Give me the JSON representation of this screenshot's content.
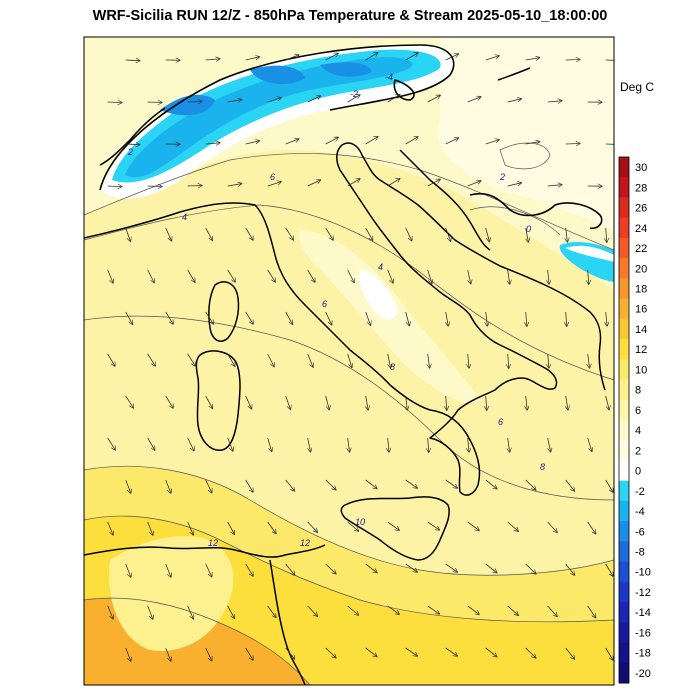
{
  "title": "WRF-Sicilia RUN 12/Z - 850hPa Temperature & Stream 2025-05-10_18:00:00",
  "unit_label": "Deg C",
  "colorbar": {
    "levels": [
      {
        "label": "30",
        "color": "#a50f15"
      },
      {
        "label": "28",
        "color": "#c4151a"
      },
      {
        "label": "26",
        "color": "#dc2a1f"
      },
      {
        "label": "24",
        "color": "#ee3d23"
      },
      {
        "label": "22",
        "color": "#f35a26"
      },
      {
        "label": "20",
        "color": "#f67a2a"
      },
      {
        "label": "18",
        "color": "#f7962c"
      },
      {
        "label": "16",
        "color": "#f9b02f"
      },
      {
        "label": "14",
        "color": "#fbc832"
      },
      {
        "label": "12",
        "color": "#fcdf3c"
      },
      {
        "label": "10",
        "color": "#fce96a"
      },
      {
        "label": "8",
        "color": "#fdf08e"
      },
      {
        "label": "6",
        "color": "#fdf5ac"
      },
      {
        "label": "4",
        "color": "#fef9c8"
      },
      {
        "label": "2",
        "color": "#fffce2"
      },
      {
        "label": "0",
        "color": "#ffffff"
      },
      {
        "label": "-2",
        "color": "#2ad4f4"
      },
      {
        "label": "-4",
        "color": "#1ab3ee"
      },
      {
        "label": "-6",
        "color": "#1a8fe6"
      },
      {
        "label": "-8",
        "color": "#1e6cdc"
      },
      {
        "label": "-10",
        "color": "#1e4fd2"
      },
      {
        "label": "-12",
        "color": "#1c38c6"
      },
      {
        "label": "-14",
        "color": "#1a26b4"
      },
      {
        "label": "-16",
        "color": "#181a9e"
      },
      {
        "label": "-18",
        "color": "#15138a"
      },
      {
        "label": "-20",
        "color": "#120d73"
      }
    ]
  },
  "contour_labels": [
    "2",
    "4",
    "6",
    "8",
    "12",
    "-2",
    "-4",
    "0"
  ],
  "colors": {
    "coast": "#000000",
    "contour": "#555555",
    "arrow": "#333333"
  }
}
